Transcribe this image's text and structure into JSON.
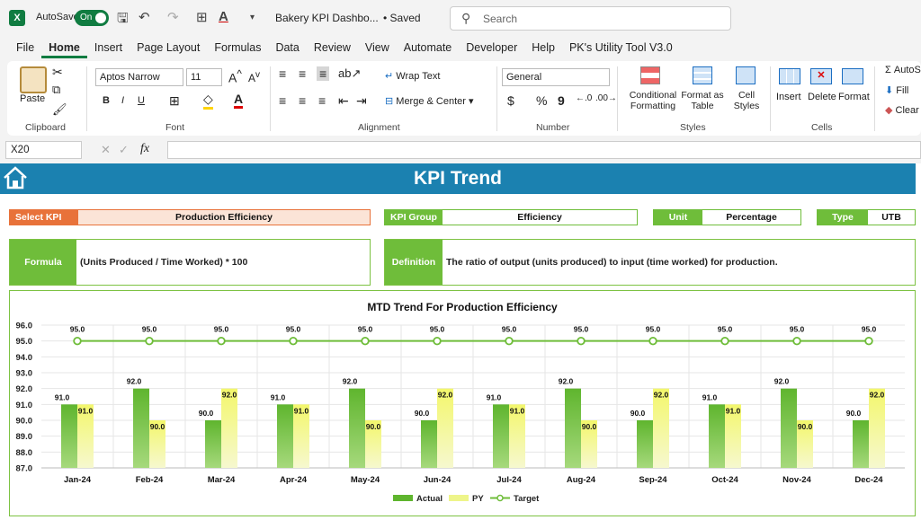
{
  "titlebar": {
    "autosave_label": "AutoSave",
    "toggle_label": "On",
    "filename": "Bakery KPI Dashbo...",
    "saved": "• Saved",
    "search_placeholder": "Search"
  },
  "menu": [
    "File",
    "Home",
    "Insert",
    "Page Layout",
    "Formulas",
    "Data",
    "Review",
    "View",
    "Automate",
    "Developer",
    "Help",
    "PK's Utility Tool V3.0"
  ],
  "ribbon": {
    "paste": "Paste",
    "clipboard": "Clipboard",
    "font_name": "Aptos Narrow",
    "font_size": "11",
    "font": "Font",
    "wrap_text": "Wrap Text",
    "merge_center": "Merge & Center",
    "alignment": "Alignment",
    "number_format": "General",
    "number": "Number",
    "cond_format": "Conditional Formatting",
    "format_table": "Format as Table",
    "cell_styles": "Cell Styles",
    "styles": "Styles",
    "insert": "Insert",
    "delete": "Delete",
    "format": "Format",
    "cells": "Cells",
    "autosum": "AutoS",
    "fill": "Fill",
    "clear": "Clear"
  },
  "formula_bar": {
    "name_box": "X20",
    "fx": "fx"
  },
  "dashboard": {
    "title": "KPI Trend",
    "select_kpi_label": "Select KPI",
    "select_kpi_value": "Production Efficiency",
    "kpi_group_label": "KPI Group",
    "kpi_group_value": "Efficiency",
    "unit_label": "Unit",
    "unit_value": "Percentage",
    "type_label": "Type",
    "type_value": "UTB",
    "formula_label": "Formula",
    "formula_value": "(Units Produced / Time Worked) * 100",
    "definition_label": "Definition",
    "definition_value": "The ratio of output (units produced) to input (time worked) for production.",
    "colors": {
      "banner": "#1b81b0",
      "green": "#6fbd3a",
      "orange": "#e8723a",
      "py": "#e8ef8a",
      "actual": "#6fbd3a"
    }
  },
  "chart_data": {
    "type": "bar",
    "title": "MTD Trend For Production Efficiency",
    "categories": [
      "Jan-24",
      "Feb-24",
      "Mar-24",
      "Apr-24",
      "May-24",
      "Jun-24",
      "Jul-24",
      "Aug-24",
      "Sep-24",
      "Oct-24",
      "Nov-24",
      "Dec-24"
    ],
    "series": [
      {
        "name": "Actual",
        "type": "bar",
        "values": [
          91.0,
          92.0,
          90.0,
          91.0,
          92.0,
          90.0,
          91.0,
          92.0,
          90.0,
          91.0,
          92.0,
          90.0
        ]
      },
      {
        "name": "PY",
        "type": "bar",
        "values": [
          91.0,
          90.0,
          92.0,
          91.0,
          90.0,
          92.0,
          91.0,
          90.0,
          92.0,
          91.0,
          90.0,
          92.0
        ]
      },
      {
        "name": "Target",
        "type": "line",
        "values": [
          95.0,
          95.0,
          95.0,
          95.0,
          95.0,
          95.0,
          95.0,
          95.0,
          95.0,
          95.0,
          95.0,
          95.0
        ]
      }
    ],
    "ylim": [
      87.0,
      96.0
    ],
    "yticks": [
      "87.0",
      "88.0",
      "89.0",
      "90.0",
      "91.0",
      "92.0",
      "93.0",
      "94.0",
      "95.0",
      "96.0"
    ],
    "legend": "bottom",
    "grid": true
  }
}
